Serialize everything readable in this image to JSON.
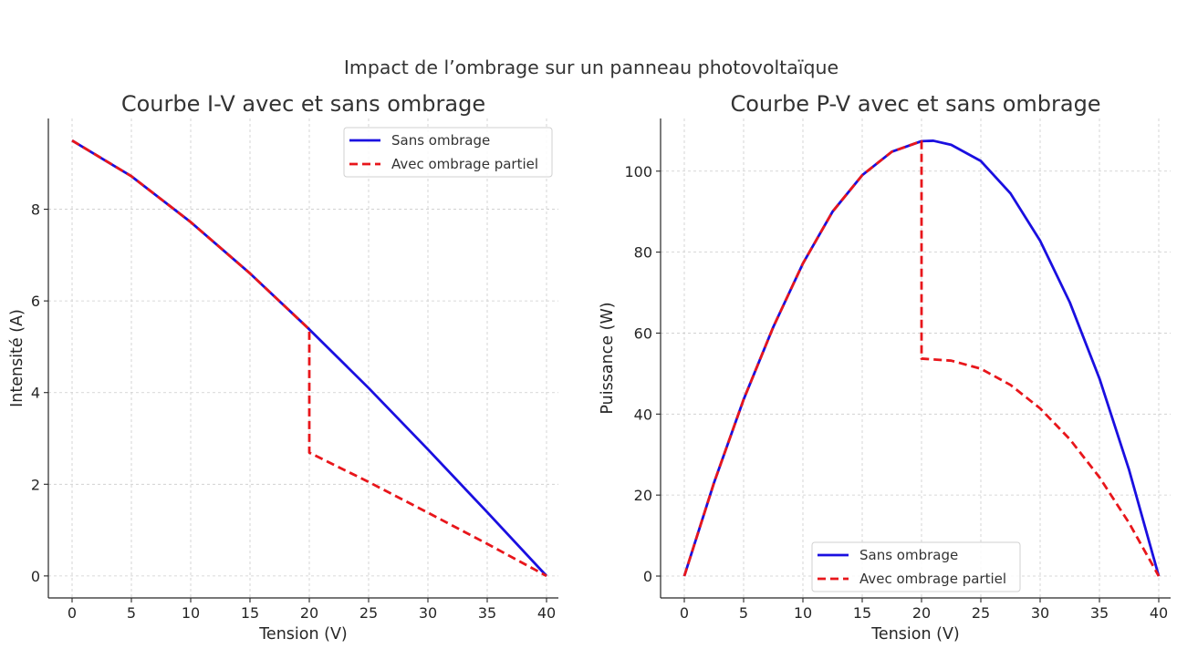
{
  "suptitle": "Impact de l’ombrage sur un panneau photovoltaïque",
  "colors": {
    "series_clear": "#1a0fe0",
    "series_shaded": "#e8161b",
    "axis": "#262626",
    "grid": "#cccccc"
  },
  "chart_data": [
    {
      "type": "line",
      "title": "Courbe I-V avec et sans ombrage",
      "xlabel": "Tension (V)",
      "ylabel": "Intensité (A)",
      "xlim": [
        -2,
        41
      ],
      "ylim": [
        -0.48,
        9.98
      ],
      "xticks": [
        0,
        5,
        10,
        15,
        20,
        25,
        30,
        35,
        40
      ],
      "yticks": [
        0,
        2,
        4,
        6,
        8
      ],
      "grid": true,
      "legend_position": "top-right",
      "series": [
        {
          "name": "Sans ombrage",
          "style": "solid",
          "x": [
            0,
            5,
            10,
            15,
            20,
            25,
            30,
            35,
            40
          ],
          "y": [
            9.5,
            8.72,
            7.72,
            6.6,
            5.38,
            4.1,
            2.76,
            1.39,
            0
          ]
        },
        {
          "name": "Avec ombrage partiel",
          "style": "dashed",
          "x": [
            0,
            5,
            10,
            15,
            20,
            20,
            25,
            30,
            35,
            40
          ],
          "y": [
            9.5,
            8.72,
            7.72,
            6.6,
            5.38,
            2.69,
            2.05,
            1.38,
            0.7,
            0
          ]
        }
      ]
    },
    {
      "type": "line",
      "title": "Courbe P-V avec et sans ombrage",
      "xlabel": "Tension (V)",
      "ylabel": "Puissance (W)",
      "xlim": [
        -2,
        41
      ],
      "ylim": [
        -5.4,
        113
      ],
      "xticks": [
        0,
        5,
        10,
        15,
        20,
        25,
        30,
        35,
        40
      ],
      "yticks": [
        0,
        20,
        40,
        60,
        80,
        100
      ],
      "grid": true,
      "legend_position": "bottom-center",
      "series": [
        {
          "name": "Sans ombrage",
          "style": "solid",
          "x": [
            0,
            2.5,
            5,
            7.5,
            10,
            12.5,
            15,
            17.5,
            20,
            21,
            22.5,
            25,
            27.5,
            30,
            32.5,
            35,
            37.5,
            40
          ],
          "y": [
            0,
            23,
            43.6,
            61.5,
            77.2,
            90,
            99,
            104.8,
            107.4,
            107.5,
            106.5,
            102.5,
            94.5,
            82.8,
            67.6,
            48.8,
            26.2,
            0
          ]
        },
        {
          "name": "Avec ombrage partiel",
          "style": "dashed",
          "x": [
            0,
            2.5,
            5,
            7.5,
            10,
            12.5,
            15,
            17.5,
            20,
            20,
            22.5,
            25,
            27.5,
            30,
            32.5,
            35,
            37.5,
            40
          ],
          "y": [
            0,
            23,
            43.6,
            61.5,
            77.2,
            90,
            99,
            104.8,
            107.4,
            53.7,
            53.2,
            51.2,
            47.2,
            41.4,
            33.8,
            24.4,
            13.1,
            0
          ]
        }
      ]
    }
  ]
}
